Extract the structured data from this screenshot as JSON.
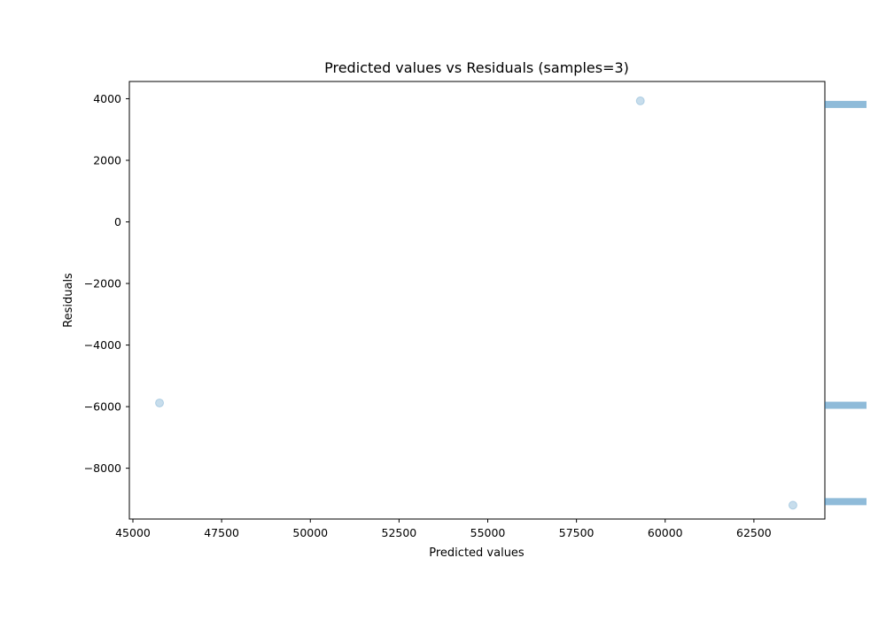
{
  "chart_data": {
    "type": "scatter",
    "title": "Predicted values vs Residuals (samples=3)",
    "xlabel": "Predicted values",
    "ylabel": "Residuals",
    "xlim": [
      44900,
      64500
    ],
    "ylim": [
      -9650,
      4560
    ],
    "xticks": [
      45000,
      47500,
      50000,
      52500,
      55000,
      57500,
      60000,
      62500
    ],
    "xtick_labels": [
      "45000",
      "47500",
      "50000",
      "52500",
      "55000",
      "57500",
      "60000",
      "62500"
    ],
    "yticks": [
      4000,
      2000,
      0,
      -2000,
      -4000,
      -6000,
      -8000
    ],
    "ytick_labels": [
      "4000",
      "2000",
      "0",
      "−2000",
      "−4000",
      "−6000",
      "−8000"
    ],
    "points": [
      {
        "x": 59300,
        "y": 3930
      },
      {
        "x": 45750,
        "y": -5880
      },
      {
        "x": 63600,
        "y": -9200
      }
    ],
    "side_histogram": {
      "bins": [
        {
          "y_low": 3700,
          "y_high": 3930,
          "count": 1
        },
        {
          "y_low": -6070,
          "y_high": -5840,
          "count": 1
        },
        {
          "y_low": -9200,
          "y_high": -8970,
          "count": 1
        }
      ]
    },
    "colors": {
      "points": "#1f77b4",
      "histogram": "#1f77b4"
    },
    "grid": false
  }
}
